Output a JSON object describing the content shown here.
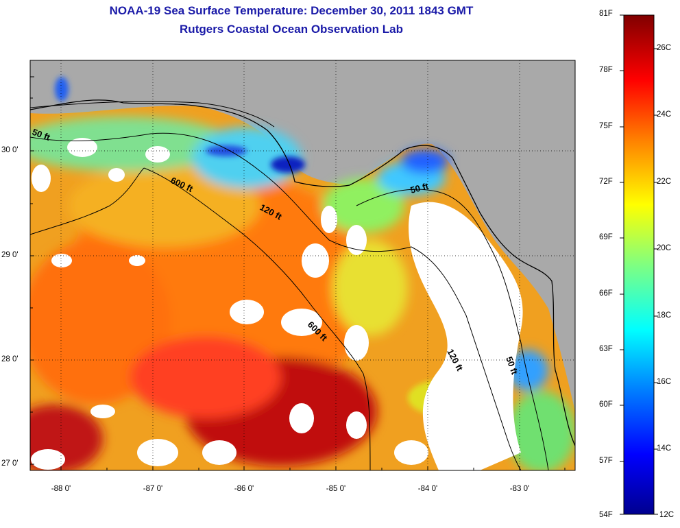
{
  "header": {
    "title": "NOAA-19 Sea Surface Temperature:  December 30, 2011 1843 GMT",
    "subtitle": "Rutgers Coastal Ocean Observation Lab"
  },
  "map": {
    "type": "sea-surface-temperature",
    "lat_labels": [
      "30 0'",
      "29 0'",
      "28 0'",
      "27 0'"
    ],
    "lon_labels": [
      "-88 0'",
      "-87 0'",
      "-86 0'",
      "-85 0'",
      "-84 0'",
      "-83 0'"
    ],
    "contour_labels": [
      "50 ft",
      "600 ft",
      "120 ft",
      "50 ft",
      "600 ft",
      "120 ft",
      "50 ft"
    ],
    "colors": {
      "land": "#a9a9a9",
      "no_data": "#ffffff",
      "coast": "#000000",
      "contour": "#000000"
    }
  },
  "colorbar": {
    "fahrenheit_labels": [
      "81F",
      "78F",
      "75F",
      "72F",
      "69F",
      "66F",
      "63F",
      "60F",
      "57F",
      "54F"
    ],
    "celsius_labels": [
      "26C",
      "24C",
      "22C",
      "20C",
      "18C",
      "16C",
      "14C",
      "12C"
    ],
    "range_f": [
      54,
      81
    ],
    "range_c": [
      12,
      27
    ],
    "colormap": [
      "#00008f",
      "#0000ff",
      "#0080ff",
      "#00ffff",
      "#80ff80",
      "#ffff00",
      "#ff8000",
      "#ff0000",
      "#800000"
    ]
  }
}
